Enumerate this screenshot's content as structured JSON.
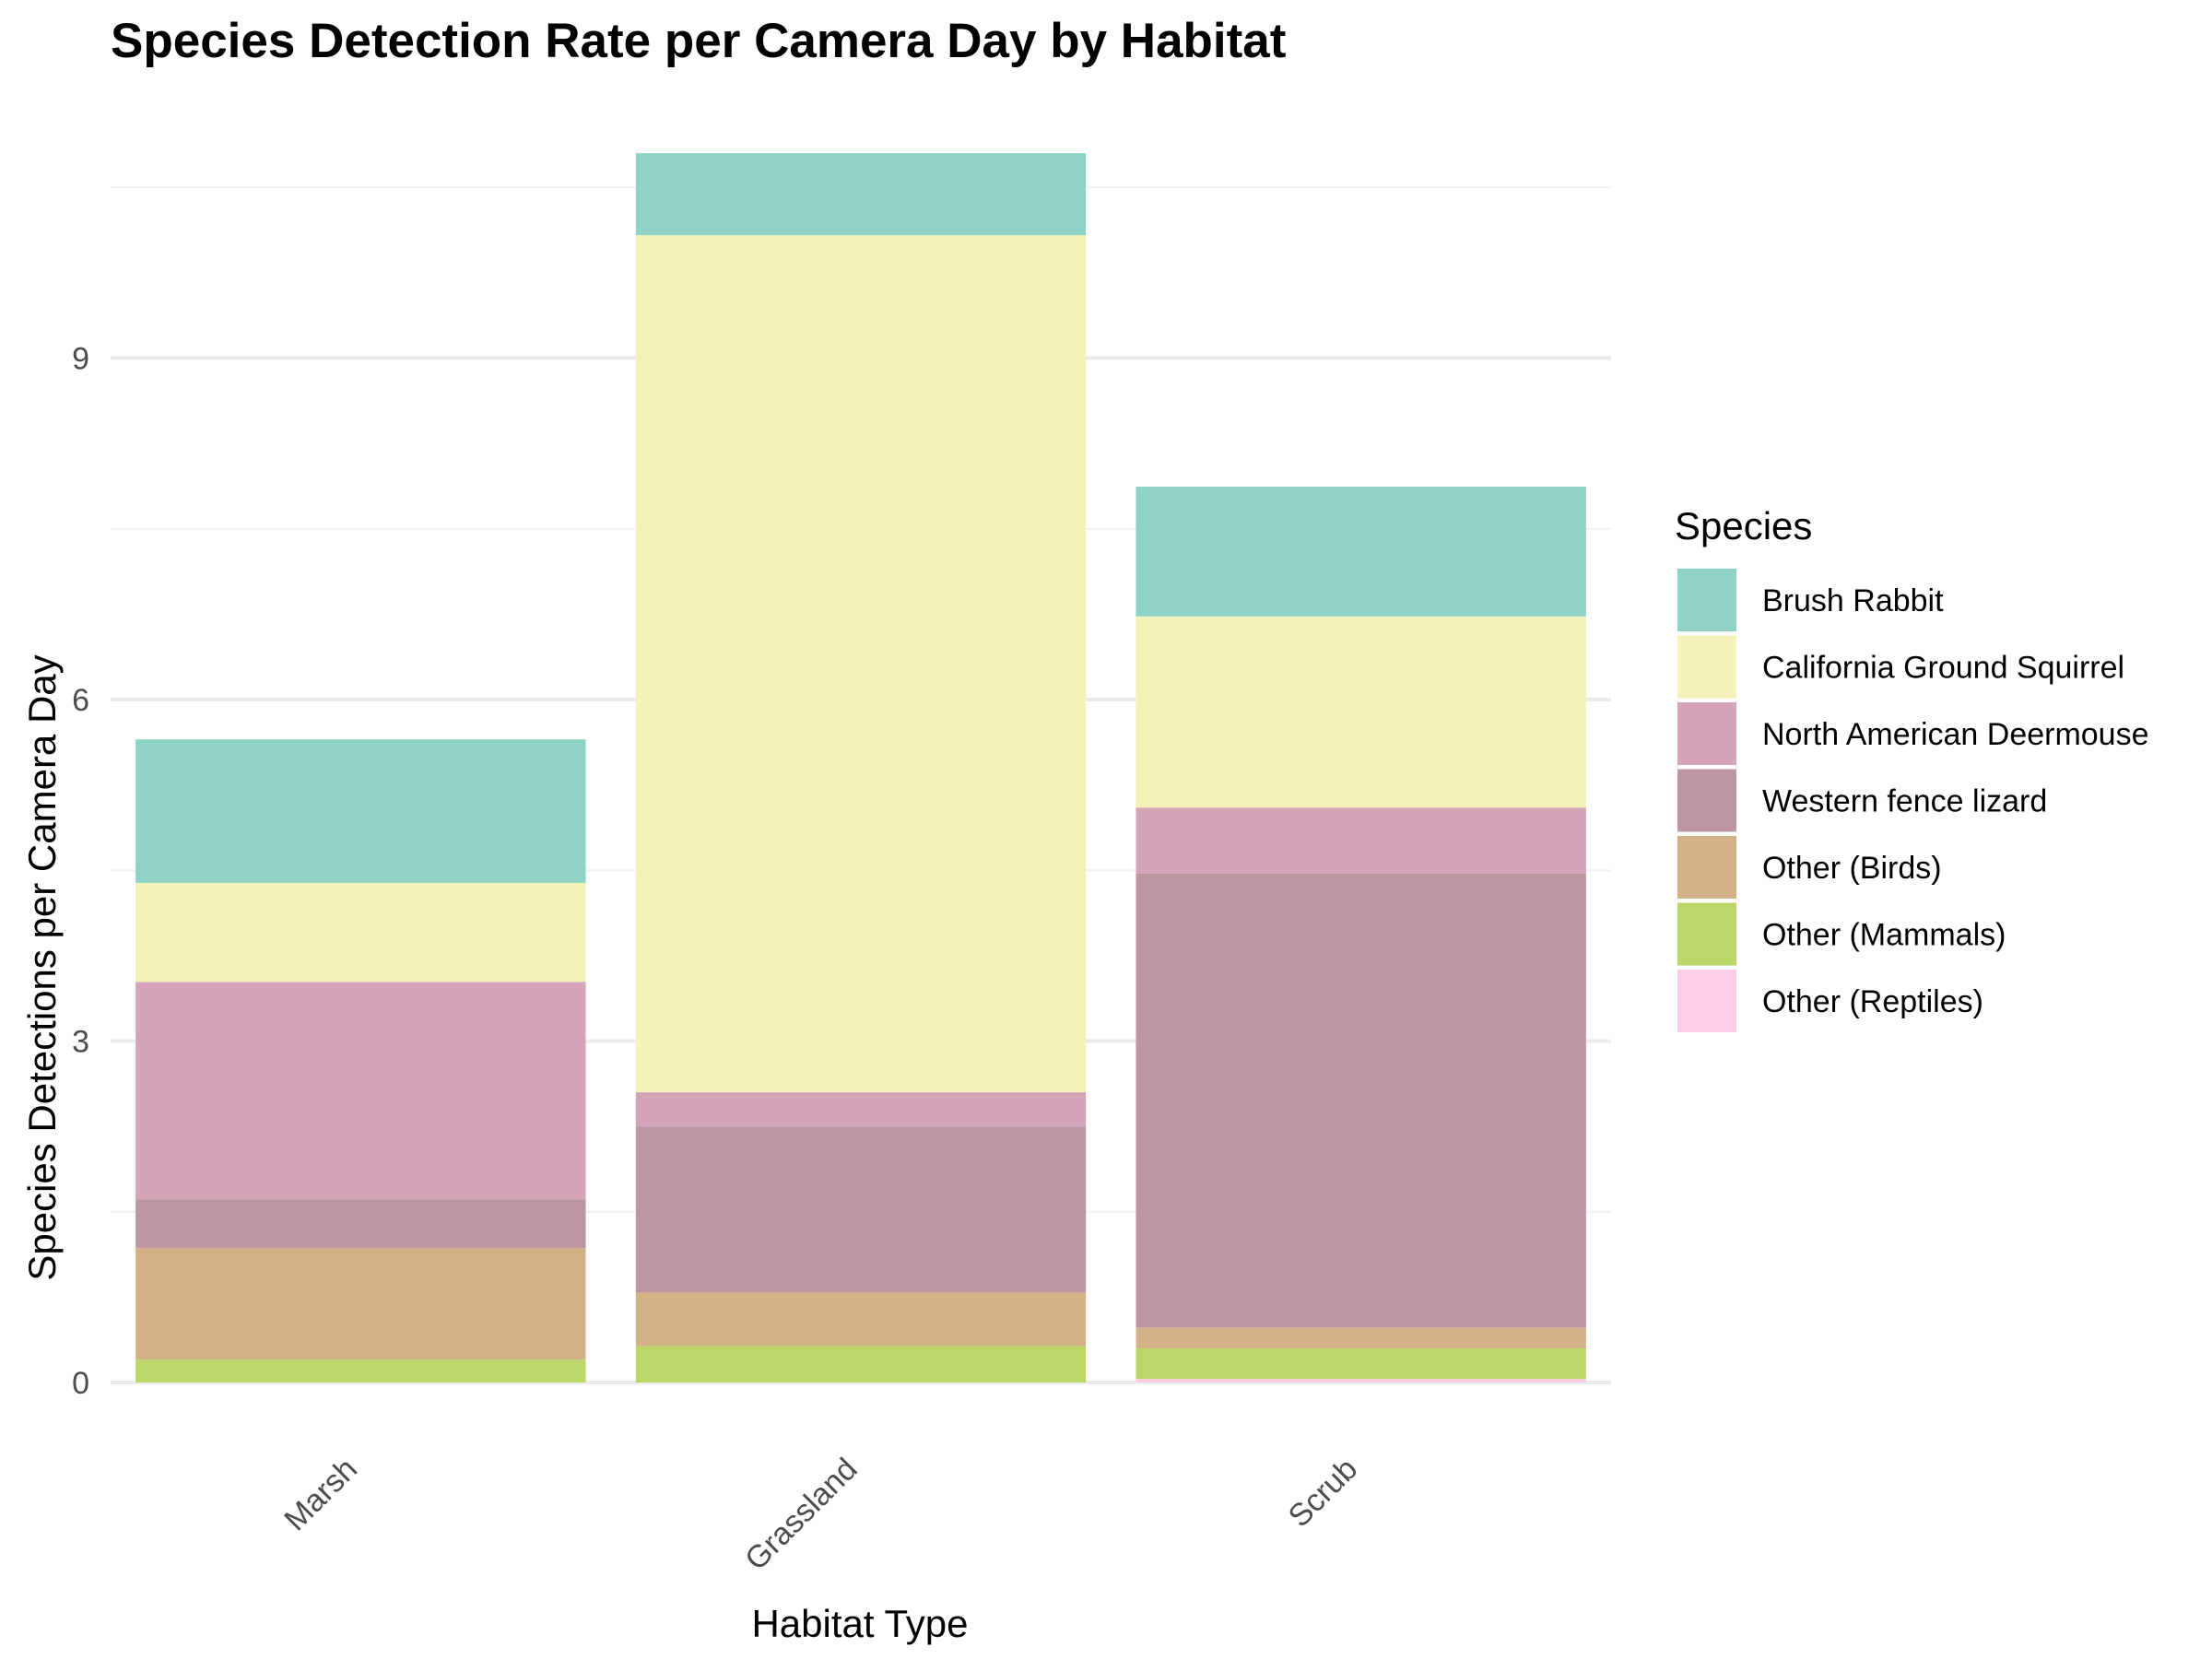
{
  "chart_data": {
    "type": "bar",
    "stacked": true,
    "title": "Species Detection Rate per Camera Day by Habitat",
    "xlabel": "Habitat Type",
    "ylabel": "Species Detections per Camera Day",
    "categories": [
      "Marsh",
      "Grassland",
      "Scrub"
    ],
    "ylim": [
      0,
      11.2
    ],
    "yticks": [
      0,
      3,
      6,
      9
    ],
    "grid": true,
    "legend_title": "Species",
    "legend_position": "right",
    "series": [
      {
        "name": "Other (Reptiles)",
        "color": "#fccde5",
        "values": [
          0.0,
          0.0,
          0.03
        ]
      },
      {
        "name": "Other (Mammals)",
        "color": "#bcd767",
        "values": [
          0.2,
          0.32,
          0.27
        ]
      },
      {
        "name": "Other (Birds)",
        "color": "#d4b287",
        "values": [
          0.98,
          0.47,
          0.18
        ]
      },
      {
        "name": "Western fence lizard",
        "color": "#bc97a1",
        "values": [
          0.43,
          1.46,
          3.99
        ]
      },
      {
        "name": "North American Deermouse",
        "color": "#d4a5b8",
        "values": [
          1.91,
          0.3,
          0.58
        ]
      },
      {
        "name": "California Ground Squirrel",
        "color": "#f4f2b9",
        "values": [
          0.87,
          7.53,
          1.68
        ]
      },
      {
        "name": "Brush Rabbit",
        "color": "#8fd3c6",
        "values": [
          1.26,
          0.72,
          1.14
        ]
      }
    ],
    "legend_order": [
      "Brush Rabbit",
      "California Ground Squirrel",
      "North American Deermouse",
      "Western fence lizard",
      "Other (Birds)",
      "Other (Mammals)",
      "Other (Reptiles)"
    ]
  }
}
